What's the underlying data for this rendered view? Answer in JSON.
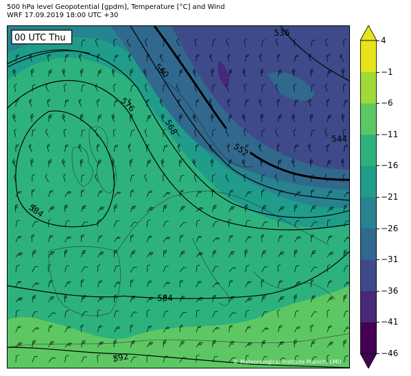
{
  "title": {
    "line1": "500 hPa level Geopotential [gpdm], Temperature [°C] and Wind",
    "line2": "WRF 17.09.2019 18:00 UTC +30"
  },
  "valid_label": "00 UTC Thu",
  "credit": "© Meteorological Institute Munich, LMU",
  "contour_labels": [
    "536",
    "544",
    "552",
    "560",
    "568",
    "576",
    "584",
    "584",
    "592"
  ],
  "colorbar": {
    "ticks": [
      "4",
      "−1",
      "−6",
      "−11",
      "−16",
      "−21",
      "−26",
      "−31",
      "−36",
      "−41",
      "−46"
    ],
    "colors": [
      "#440154",
      "#482878",
      "#3e4a89",
      "#31688e",
      "#26838f",
      "#1f9d8a",
      "#2db27d",
      "#5dc863",
      "#9fd93a",
      "#e7e419"
    ]
  },
  "map_colors": {
    "cold": "#3e4a89",
    "cool": "#31688e",
    "mid": "#26838f",
    "teal": "#1f9d8a",
    "green": "#2db27d",
    "light_green": "#5dc863"
  }
}
